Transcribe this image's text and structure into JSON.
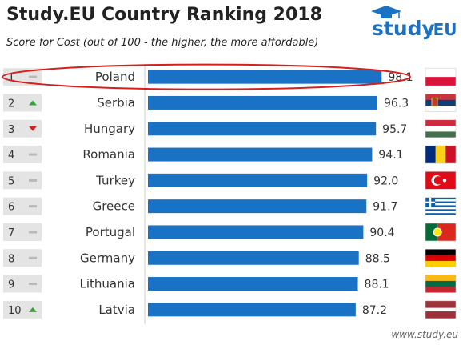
{
  "header": {
    "title": "Study.EU Country Ranking 2018",
    "subtitle": "Score for Cost (out of 100 - the higher, the more affordable)"
  },
  "logo": {
    "text_main": "study",
    "text_suffix": ".EU",
    "icon": "graduation-cap-icon"
  },
  "footer": {
    "credit": "www.study.eu"
  },
  "colors": {
    "bar": "#1a72c4",
    "rank_box": "#e4e4e4",
    "up": "#3aa13a",
    "down": "#cc2222",
    "same": "#b8b8b8",
    "highlight": "#d61f1f",
    "logo": "#1a72c4"
  },
  "chart_data": {
    "type": "bar",
    "orientation": "horizontal",
    "title": "Study.EU Country Ranking 2018",
    "subtitle": "Score for Cost (out of 100 - the higher, the more affordable)",
    "grid": false,
    "highlighted": "Poland",
    "rows": [
      {
        "rank": "1",
        "trend": "same",
        "country": "Poland",
        "value": 98.1,
        "label": "98.1",
        "flag": "poland-flag"
      },
      {
        "rank": "2",
        "trend": "up",
        "country": "Serbia",
        "value": 96.3,
        "label": "96.3",
        "flag": "serbia-flag"
      },
      {
        "rank": "3",
        "trend": "down",
        "country": "Hungary",
        "value": 95.7,
        "label": "95.7",
        "flag": "hungary-flag"
      },
      {
        "rank": "4",
        "trend": "same",
        "country": "Romania",
        "value": 94.1,
        "label": "94.1",
        "flag": "romania-flag"
      },
      {
        "rank": "5",
        "trend": "same",
        "country": "Turkey",
        "value": 92.0,
        "label": "92.0",
        "flag": "turkey-flag"
      },
      {
        "rank": "6",
        "trend": "same",
        "country": "Greece",
        "value": 91.7,
        "label": "91.7",
        "flag": "greece-flag"
      },
      {
        "rank": "7",
        "trend": "same",
        "country": "Portugal",
        "value": 90.4,
        "label": "90.4",
        "flag": "portugal-flag"
      },
      {
        "rank": "8",
        "trend": "same",
        "country": "Germany",
        "value": 88.5,
        "label": "88.5",
        "flag": "germany-flag"
      },
      {
        "rank": "9",
        "trend": "same",
        "country": "Lithuania",
        "value": 88.1,
        "label": "88.1",
        "flag": "lithuania-flag"
      },
      {
        "rank": "10",
        "trend": "up",
        "country": "Latvia",
        "value": 87.2,
        "label": "87.2",
        "flag": "latvia-flag"
      }
    ]
  }
}
